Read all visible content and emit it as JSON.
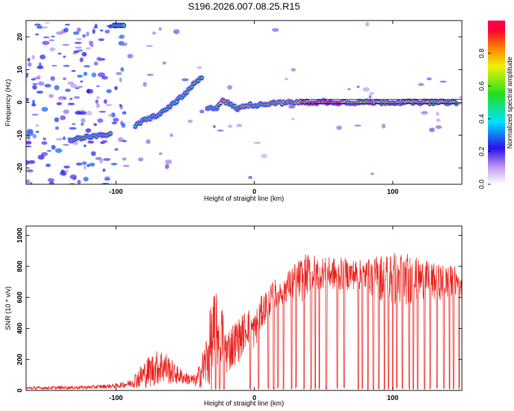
{
  "page": {
    "title": "S196.2026.007.08.25.R15"
  },
  "colors": {
    "snr_line": "#e8201b",
    "axis": "#000000",
    "ridge_core": "#e8203c",
    "ridge_edge": "#2a2aa0",
    "noise": "#b58ad8"
  },
  "chart_data": [
    {
      "type": "heatmap",
      "name": "spectrogram",
      "xlabel": "Height of straight line (km)",
      "ylabel": "Frequency (Hz)",
      "xlim": [
        -165,
        150
      ],
      "ylim": [
        -25,
        25
      ],
      "x_ticks": [
        -100,
        0,
        100
      ],
      "x_tick_labels": [
        "-100",
        "0",
        "100"
      ],
      "y_ticks": [
        -20,
        -10,
        0,
        10,
        20
      ],
      "y_tick_labels": [
        "-20",
        "-10",
        "0",
        "10",
        "20"
      ],
      "colorbar": {
        "label": "Normalized spectral amplitude",
        "range": [
          0,
          1
        ],
        "ticks": [
          0,
          0.2,
          0.4,
          0.6,
          0.8
        ],
        "tick_labels": [
          "0.0",
          "0.2",
          "0.4",
          "0.6",
          "0.8"
        ]
      },
      "ridge": [
        {
          "x": -133,
          "y": -11.5,
          "a": 0.45
        },
        {
          "x": -125,
          "y": -10.8,
          "a": 0.55
        },
        {
          "x": -118,
          "y": -10.3,
          "a": 0.5
        },
        {
          "x": -110,
          "y": -10.2,
          "a": 0.55
        },
        {
          "x": -104,
          "y": -9.5,
          "a": 0.6
        },
        {
          "x": -98,
          "y": 23.5,
          "a": 0.45
        },
        {
          "x": -86,
          "y": -7.3,
          "a": 0.5
        },
        {
          "x": -80,
          "y": -5.5,
          "a": 0.5
        },
        {
          "x": -74,
          "y": -4.5,
          "a": 0.5
        },
        {
          "x": -68,
          "y": -3.5,
          "a": 0.5
        },
        {
          "x": -62,
          "y": -1.5,
          "a": 0.5
        },
        {
          "x": -56,
          "y": 0.5,
          "a": 0.5
        },
        {
          "x": -50,
          "y": 2.5,
          "a": 0.55
        },
        {
          "x": -44,
          "y": 5.5,
          "a": 0.6
        },
        {
          "x": -38,
          "y": 7.5,
          "a": 0.5
        },
        {
          "x": -34,
          "y": -2,
          "a": 0.4
        },
        {
          "x": -27,
          "y": -1.5,
          "a": 0.5
        },
        {
          "x": -23,
          "y": 0.8,
          "a": 0.8
        },
        {
          "x": -18,
          "y": -0.5,
          "a": 0.5
        },
        {
          "x": -12,
          "y": -2,
          "a": 0.55
        },
        {
          "x": -7,
          "y": -1,
          "a": 0.7
        },
        {
          "x": -3,
          "y": -0.8,
          "a": 0.55
        },
        {
          "x": 2,
          "y": -0.8,
          "a": 0.55
        },
        {
          "x": 8,
          "y": -0.5,
          "a": 0.6
        },
        {
          "x": 14,
          "y": 0,
          "a": 0.6
        },
        {
          "x": 20,
          "y": -0.2,
          "a": 0.7
        },
        {
          "x": 26,
          "y": 0,
          "a": 0.7
        },
        {
          "x": 32,
          "y": 0,
          "a": 0.75
        },
        {
          "x": 38,
          "y": 0,
          "a": 0.9
        },
        {
          "x": 50,
          "y": 0,
          "a": 0.95
        },
        {
          "x": 60,
          "y": 0,
          "a": 0.95
        },
        {
          "x": 68,
          "y": 0,
          "a": 0.8
        },
        {
          "x": 76,
          "y": 0,
          "a": 0.75
        },
        {
          "x": 84,
          "y": 0,
          "a": 0.8
        },
        {
          "x": 92,
          "y": 0,
          "a": 0.75
        },
        {
          "x": 100,
          "y": 0,
          "a": 0.7
        },
        {
          "x": 108,
          "y": 0,
          "a": 0.65
        },
        {
          "x": 116,
          "y": 0,
          "a": 0.8
        },
        {
          "x": 124,
          "y": 0,
          "a": 0.75
        },
        {
          "x": 132,
          "y": 0,
          "a": 0.7
        },
        {
          "x": 140,
          "y": 0,
          "a": 0.7
        },
        {
          "x": 146,
          "y": 0,
          "a": 0.6
        }
      ]
    },
    {
      "type": "line",
      "name": "snr",
      "xlabel": "Height of straight line (km)",
      "ylabel": "SNR (10 * v/v)",
      "xlim": [
        -165,
        150
      ],
      "ylim": [
        0,
        1060
      ],
      "x_ticks": [
        -100,
        0,
        100
      ],
      "x_tick_labels": [
        "-100",
        "0",
        "100"
      ],
      "y_ticks": [
        0,
        200,
        400,
        600,
        800,
        1000
      ],
      "y_tick_labels": [
        "0",
        "200",
        "400",
        "600",
        "800",
        "1000"
      ],
      "envelope": {
        "x": [
          -165,
          -120,
          -100,
          -90,
          -82,
          -75,
          -66,
          -58,
          -50,
          -42,
          -36,
          -30,
          -25,
          -20,
          -15,
          -10,
          -5,
          0,
          5,
          10,
          15,
          20,
          25,
          30,
          35,
          40,
          50,
          60,
          70,
          80,
          90,
          100,
          110,
          120,
          130,
          140,
          150
        ],
        "mean": [
          15,
          20,
          30,
          45,
          90,
          130,
          160,
          110,
          80,
          60,
          160,
          320,
          400,
          250,
          300,
          340,
          420,
          380,
          500,
          570,
          620,
          650,
          680,
          710,
          720,
          760,
          760,
          750,
          750,
          740,
          730,
          720,
          720,
          720,
          700,
          700,
          700
        ],
        "amp": [
          10,
          12,
          15,
          25,
          80,
          110,
          120,
          70,
          40,
          40,
          150,
          320,
          220,
          150,
          150,
          140,
          120,
          120,
          110,
          100,
          100,
          100,
          100,
          120,
          150,
          130,
          100,
          110,
          100,
          100,
          150,
          180,
          170,
          130,
          120,
          110,
          100
        ]
      },
      "dropouts_x": [
        -28,
        -25,
        -22,
        -3,
        3,
        10,
        14,
        17,
        21,
        27,
        30,
        36,
        41,
        44,
        47,
        52,
        60,
        65,
        75,
        78,
        82,
        86,
        90,
        94,
        97,
        100,
        103,
        107,
        112,
        115,
        118,
        123,
        127,
        132,
        137,
        141,
        144,
        148
      ]
    }
  ]
}
